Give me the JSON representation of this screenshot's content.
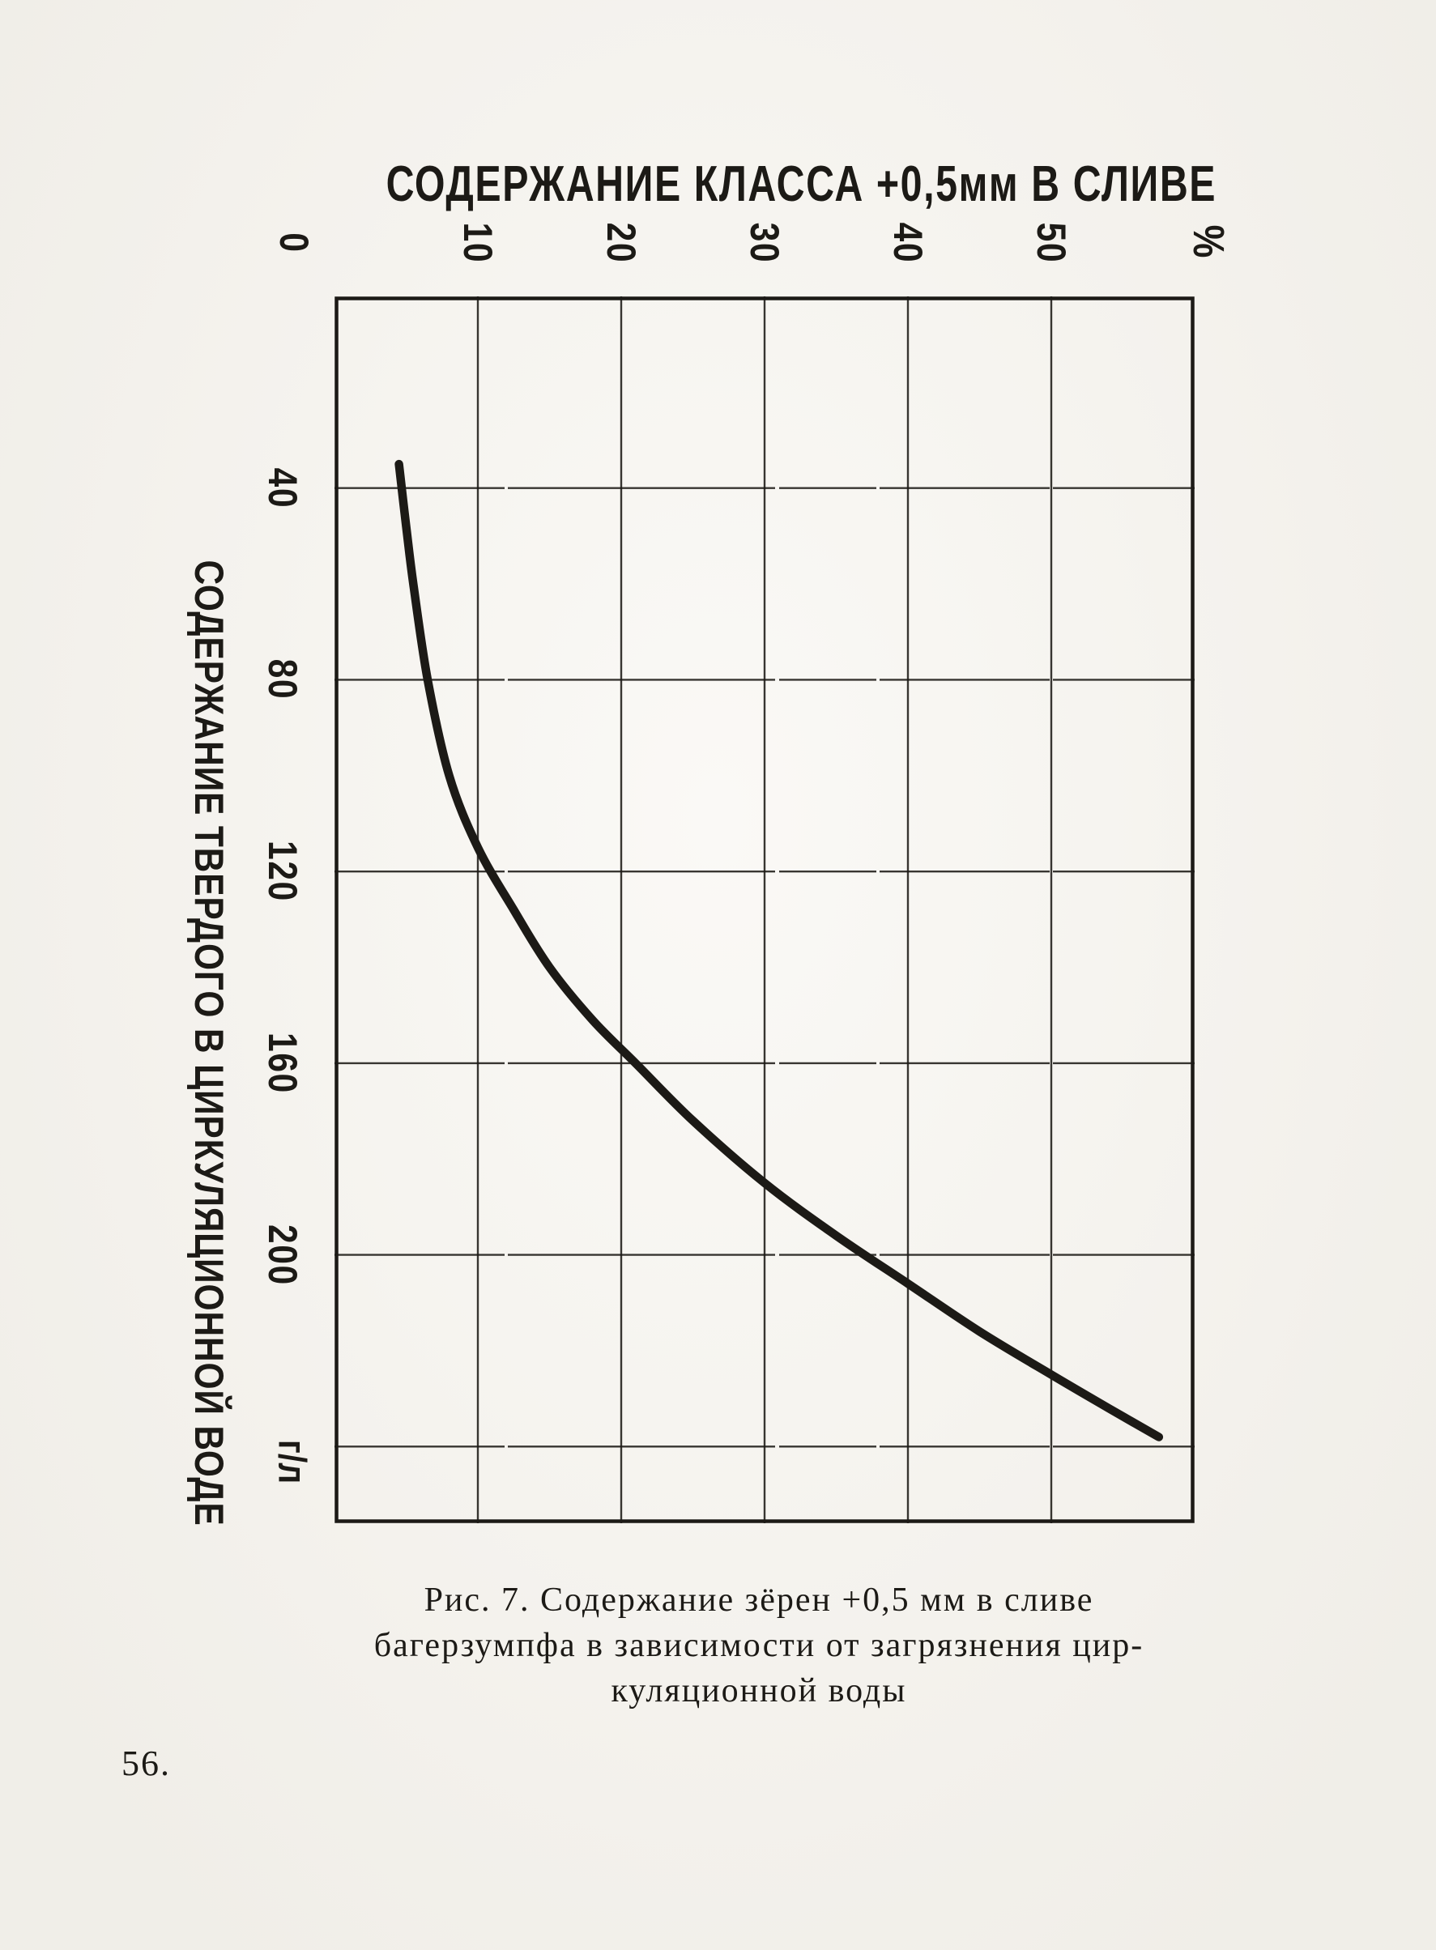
{
  "page": {
    "number": "56."
  },
  "figure": {
    "title": "СОДЕРЖАНИЕ КЛАССА +0,5мм В СЛИВЕ",
    "y_axis_title": "СОДЕРЖАНИЕ ТВЕРДОГО В ЦИРКУЛЯЦИОННОЙ ВОДЕ",
    "x_unit": "%",
    "y_unit": "г/л"
  },
  "caption": {
    "lines": [
      "Рис. 7. Содержание зёрен +0,5 мм в сливе",
      "багерзумпфа в зависимости от загрязнения цир-",
      "куляционной воды"
    ]
  },
  "colors": {
    "ink": "#1c1a16",
    "paper": "#f8f6f1"
  },
  "chart_data": {
    "type": "line",
    "title": "Содержание класса +0,5 мм в сливе",
    "xlabel": "Содержание класса +0,5 мм в сливе, %",
    "ylabel": "Содержание твердого в циркуляционной воде, г/л",
    "orientation": "figure printed rotated 90°: % axis along top (0 at left), г/л axis along left side increasing downward",
    "grid": true,
    "legend": false,
    "xlim": [
      0,
      60
    ],
    "ylim": [
      0,
      256
    ],
    "x_ticks": [
      0,
      10,
      20,
      30,
      40,
      50
    ],
    "y_ticks": [
      40,
      80,
      120,
      160,
      200
    ],
    "x_gridlines": [
      10,
      20,
      30,
      40,
      50
    ],
    "y_gridlines": [
      40,
      80,
      120,
      160,
      200,
      240
    ],
    "points": [
      [
        4.5,
        35
      ],
      [
        5,
        48
      ],
      [
        5.5,
        60
      ],
      [
        6.5,
        80
      ],
      [
        8,
        100
      ],
      [
        10,
        115
      ],
      [
        12.5,
        128
      ],
      [
        15,
        140
      ],
      [
        18,
        151
      ],
      [
        21,
        160
      ],
      [
        25,
        172
      ],
      [
        30,
        185
      ],
      [
        35,
        196
      ],
      [
        40,
        206
      ],
      [
        45,
        216
      ],
      [
        50,
        225
      ],
      [
        54,
        232
      ],
      [
        57.5,
        238
      ]
    ]
  }
}
